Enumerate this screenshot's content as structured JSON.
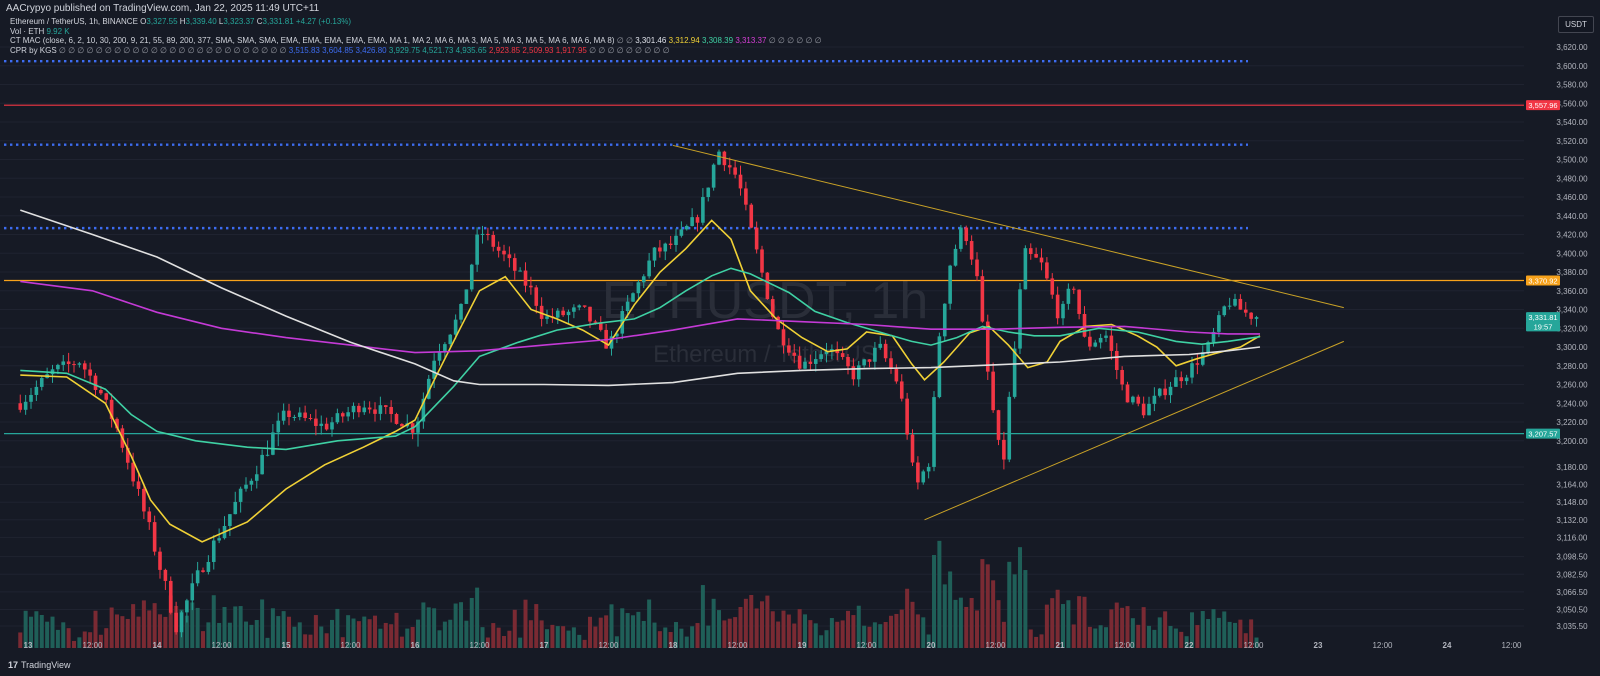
{
  "header": {
    "publisher": "AACrypyo published on TradingView.com, Jan 22, 2025 11:49 UTC+11",
    "currency_button": "USDT",
    "legend": {
      "symbol": "Ethereum / TetherUS, 1h, BINANCE",
      "o_label": "O",
      "o": "3,327.55",
      "h_label": "H",
      "h": "3,339.40",
      "l_label": "L",
      "l": "3,323.37",
      "c_label": "C",
      "c": "3,331.81",
      "chg": "+4.27 (+0.13%)",
      "vol_label": "Vol · ETH",
      "vol": "9.92 K",
      "mac_label": "CT MAC (close, 6, 2, 10, 30, 200, 9, 21, 55, 89, 200, 377, SMA, SMA, SMA, EMA, EMA, EMA, EMA, EMA, MA 1, MA 2, MA 6, MA 3, MA 5, MA 3, MA 5, MA 6, MA 6, MA 8)",
      "mac_dots1": "∅ ∅",
      "mac_v1": "3,301.46",
      "mac_v2": "3,312.94",
      "mac_v3": "3,308.39",
      "mac_v4": "3,313.37",
      "mac_dots2": "∅ ∅ ∅ ∅ ∅ ∅",
      "cpr_label": "CPR by KGS",
      "cpr_dots1": "∅ ∅ ∅ ∅ ∅ ∅ ∅ ∅ ∅ ∅ ∅ ∅ ∅ ∅ ∅ ∅ ∅ ∅ ∅ ∅ ∅ ∅ ∅ ∅ ∅",
      "cpr_v1": "3,515.83",
      "cpr_v2": "3,604.85",
      "cpr_v3": "3,426.80",
      "cpr_v4": "3,929.75",
      "cpr_v5": "4,521.73",
      "cpr_v6": "4,935.65",
      "cpr_v7": "2,923.85",
      "cpr_v8": "2,509.93",
      "cpr_v9": "1,917.95",
      "cpr_dots2": "∅ ∅ ∅ ∅ ∅ ∅ ∅ ∅ ∅"
    }
  },
  "watermark": {
    "symbol": "ETHUSDT, 1h",
    "name": "Ethereum / TetherUS"
  },
  "footer": {
    "brand_mark": "17",
    "brand": "TradingView"
  },
  "chart_data": {
    "type": "candlestick",
    "y_axis_labels": [
      "3,620.00",
      "3,600.00",
      "3,580.00",
      "3,560.00",
      "3,540.00",
      "3,520.00",
      "3,500.00",
      "3,480.00",
      "3,460.00",
      "3,440.00",
      "3,420.00",
      "3,400.00",
      "3,380.00",
      "3,360.00",
      "3,340.00",
      "3,320.00",
      "3,300.00",
      "3,280.00",
      "3,260.00",
      "3,240.00",
      "3,220.00",
      "3,200.00",
      "3,180.00",
      "3,164.00",
      "3,148.00",
      "3,132.00",
      "3,116.00",
      "3,098.50",
      "3,082.50",
      "3,066.50",
      "3,050.50",
      "3,035.50"
    ],
    "x_axis_labels": [
      "13",
      "12:00",
      "14",
      "12:00",
      "15",
      "12:00",
      "16",
      "12:00",
      "17",
      "12:00",
      "18",
      "12:00",
      "19",
      "12:00",
      "20",
      "12:00",
      "21",
      "12:00",
      "22",
      "12:00",
      "23",
      "12:00",
      "24",
      "12:00"
    ],
    "price_tags": [
      {
        "label": "3,557.96",
        "value": 3557.96,
        "color": "#f23645"
      },
      {
        "label": "3,370.92",
        "value": 3370.92,
        "color": "#f7a21b"
      },
      {
        "label": "3,331.81",
        "value": 3331.81,
        "color": "#26a69a"
      },
      {
        "label": "19:57",
        "value": 3322,
        "color": "#26a69a"
      },
      {
        "label": "3,207.57",
        "value": 3207.57,
        "color": "#26a69a"
      }
    ],
    "horizontal_lines": [
      {
        "value": 3604.85,
        "color": "#3d6cf0",
        "style": "dotted"
      },
      {
        "value": 3557.96,
        "color": "#f23645",
        "style": "solid"
      },
      {
        "value": 3515.83,
        "color": "#3d6cf0",
        "style": "dotted"
      },
      {
        "value": 3426.8,
        "color": "#3d6cf0",
        "style": "dotted"
      },
      {
        "value": 3370.92,
        "color": "#f7a21b",
        "style": "solid"
      },
      {
        "value": 3207.57,
        "color": "#26a69a",
        "style": "solid"
      }
    ],
    "trendlines": [
      {
        "from": [
          18.0,
          3515
        ],
        "to": [
          23.2,
          3342
        ],
        "color": "#c9a227"
      },
      {
        "from": [
          19.95,
          3132
        ],
        "to": [
          23.2,
          3306
        ],
        "color": "#c9a227"
      }
    ],
    "series": [
      {
        "color": "#f0d136",
        "points": [
          [
            12.94,
            3270
          ],
          [
            13.3,
            3268
          ],
          [
            13.6,
            3240
          ],
          [
            13.8,
            3190
          ],
          [
            13.95,
            3150
          ],
          [
            14.1,
            3128
          ],
          [
            14.35,
            3112
          ],
          [
            14.7,
            3130
          ],
          [
            15.0,
            3160
          ],
          [
            15.3,
            3182
          ],
          [
            15.6,
            3198
          ],
          [
            15.85,
            3210
          ],
          [
            16.0,
            3222
          ],
          [
            16.15,
            3265
          ],
          [
            16.35,
            3320
          ],
          [
            16.5,
            3360
          ],
          [
            16.7,
            3375
          ],
          [
            16.9,
            3340
          ],
          [
            17.1,
            3330
          ],
          [
            17.3,
            3318
          ],
          [
            17.5,
            3302
          ],
          [
            17.7,
            3345
          ],
          [
            17.9,
            3380
          ],
          [
            18.1,
            3405
          ],
          [
            18.3,
            3435
          ],
          [
            18.45,
            3415
          ],
          [
            18.6,
            3360
          ],
          [
            18.8,
            3330
          ],
          [
            19.0,
            3310
          ],
          [
            19.2,
            3295
          ],
          [
            19.35,
            3298
          ],
          [
            19.5,
            3316
          ],
          [
            19.7,
            3312
          ],
          [
            19.85,
            3282
          ],
          [
            19.95,
            3265
          ],
          [
            20.1,
            3284
          ],
          [
            20.3,
            3315
          ],
          [
            20.45,
            3322
          ],
          [
            20.6,
            3302
          ],
          [
            20.75,
            3278
          ],
          [
            20.9,
            3284
          ],
          [
            21.0,
            3306
          ],
          [
            21.2,
            3322
          ],
          [
            21.4,
            3324
          ],
          [
            21.6,
            3312
          ],
          [
            21.75,
            3300
          ],
          [
            21.9,
            3280
          ],
          [
            22.05,
            3287
          ],
          [
            22.2,
            3293
          ],
          [
            22.4,
            3300
          ],
          [
            22.55,
            3312
          ]
        ]
      },
      {
        "color": "#3fd1a4",
        "points": [
          [
            12.94,
            3275
          ],
          [
            13.3,
            3272
          ],
          [
            13.6,
            3255
          ],
          [
            13.8,
            3228
          ],
          [
            14.0,
            3210
          ],
          [
            14.3,
            3200
          ],
          [
            14.7,
            3198
          ],
          [
            15.0,
            3196
          ],
          [
            15.4,
            3200
          ],
          [
            15.85,
            3205
          ],
          [
            16.0,
            3215
          ],
          [
            16.3,
            3258
          ],
          [
            16.5,
            3290
          ],
          [
            16.8,
            3305
          ],
          [
            17.1,
            3318
          ],
          [
            17.4,
            3325
          ],
          [
            17.7,
            3330
          ],
          [
            17.9,
            3342
          ],
          [
            18.1,
            3360
          ],
          [
            18.3,
            3376
          ],
          [
            18.45,
            3384
          ],
          [
            18.6,
            3378
          ],
          [
            18.9,
            3358
          ],
          [
            19.1,
            3338
          ],
          [
            19.35,
            3326
          ],
          [
            19.6,
            3316
          ],
          [
            19.85,
            3306
          ],
          [
            20.0,
            3302
          ],
          [
            20.2,
            3310
          ],
          [
            20.4,
            3322
          ],
          [
            20.6,
            3316
          ],
          [
            20.8,
            3312
          ],
          [
            21.0,
            3312
          ],
          [
            21.3,
            3320
          ],
          [
            21.6,
            3316
          ],
          [
            21.9,
            3306
          ],
          [
            22.1,
            3303
          ],
          [
            22.3,
            3306
          ],
          [
            22.55,
            3311
          ]
        ]
      },
      {
        "color": "#c43ad6",
        "points": [
          [
            12.94,
            3370
          ],
          [
            13.5,
            3360
          ],
          [
            14.0,
            3337
          ],
          [
            14.5,
            3320
          ],
          [
            15.0,
            3310
          ],
          [
            15.5,
            3302
          ],
          [
            16.0,
            3294
          ],
          [
            16.5,
            3296
          ],
          [
            17.0,
            3302
          ],
          [
            17.5,
            3308
          ],
          [
            18.0,
            3318
          ],
          [
            18.5,
            3330
          ],
          [
            19.0,
            3327
          ],
          [
            19.5,
            3324
          ],
          [
            20.0,
            3319
          ],
          [
            20.5,
            3319
          ],
          [
            21.0,
            3321
          ],
          [
            21.5,
            3322
          ],
          [
            22.0,
            3316
          ],
          [
            22.3,
            3314
          ],
          [
            22.55,
            3314
          ]
        ]
      },
      {
        "color": "#e0e0e0",
        "points": [
          [
            12.94,
            3446
          ],
          [
            13.5,
            3420
          ],
          [
            14.0,
            3396
          ],
          [
            14.5,
            3363
          ],
          [
            15.0,
            3333
          ],
          [
            15.5,
            3305
          ],
          [
            16.0,
            3282
          ],
          [
            16.3,
            3264
          ],
          [
            16.5,
            3260
          ],
          [
            17.0,
            3260
          ],
          [
            17.5,
            3259
          ],
          [
            18.0,
            3262
          ],
          [
            18.5,
            3272
          ],
          [
            19.0,
            3275
          ],
          [
            19.5,
            3277
          ],
          [
            20.0,
            3278
          ],
          [
            20.5,
            3281
          ],
          [
            21.0,
            3284
          ],
          [
            21.5,
            3290
          ],
          [
            22.0,
            3292
          ],
          [
            22.3,
            3296
          ],
          [
            22.55,
            3300
          ]
        ]
      }
    ]
  }
}
